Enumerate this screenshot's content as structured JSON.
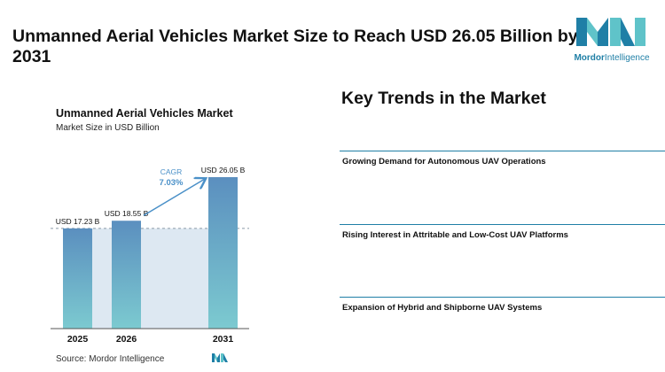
{
  "headline": "Unmanned Aerial Vehicles Market Size to Reach USD 26.05 Billion by 2031",
  "logo": {
    "icon": "mordor-intelligence-logo",
    "text_bold": "Mordor",
    "text_light": "Intelligence",
    "color": "#1f7fa6"
  },
  "chart_data": {
    "type": "bar",
    "title": "Unmanned Aerial Vehicles Market",
    "subtitle": "Market Size in USD Billion",
    "categories": [
      "2025",
      "2026",
      "2031"
    ],
    "values": [
      17.23,
      18.55,
      26.05
    ],
    "value_labels": [
      "USD 17.23 B",
      "USD 18.55 B",
      "USD 26.05 B"
    ],
    "cagr_label": "CAGR",
    "cagr_value": "7.03%",
    "ylim": [
      0,
      26.05
    ],
    "grid": false,
    "colors": {
      "bar_top": "#5b8fbf",
      "bar_bottom": "#7ccad0",
      "band": "#dde8f2",
      "arrow": "#4a90c8",
      "dash": "#8a9aa8"
    }
  },
  "source": "Source: Mordor Intelligence",
  "trends": {
    "title": "Key Trends in the Market",
    "items": [
      "Growing Demand for Autonomous UAV Operations",
      "Rising Interest in Attritable and Low-Cost UAV Platforms",
      "Expansion of Hybrid and Shipborne UAV Systems"
    ]
  }
}
